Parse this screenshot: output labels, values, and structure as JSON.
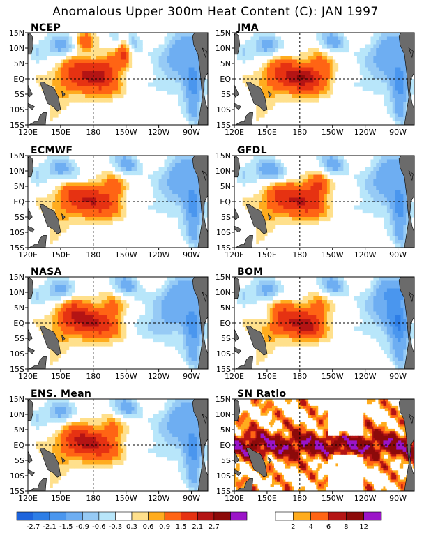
{
  "figure_title": "Anomalous Upper 300m Heat Content (C): JAN 1997",
  "chart_data": [
    {
      "type": "heatmap",
      "title": "NCEP",
      "field": "ncep"
    },
    {
      "type": "heatmap",
      "title": "JMA",
      "field": "jma"
    },
    {
      "type": "heatmap",
      "title": "ECMWF",
      "field": "ecmwf"
    },
    {
      "type": "heatmap",
      "title": "GFDL",
      "field": "gfdl"
    },
    {
      "type": "heatmap",
      "title": "NASA",
      "field": "nasa"
    },
    {
      "type": "heatmap",
      "title": "BOM",
      "field": "bom"
    },
    {
      "type": "heatmap",
      "title": "ENS. Mean",
      "field": "mean"
    },
    {
      "type": "heatmap",
      "title": "SN Ratio",
      "field": "sn"
    }
  ],
  "axes": {
    "x_ticks": [
      "120E",
      "150E",
      "180",
      "150W",
      "120W",
      "90W"
    ],
    "x_values": [
      120,
      150,
      180,
      210,
      240,
      270
    ],
    "x_range": [
      120,
      285
    ],
    "y_ticks": [
      "15N",
      "10N",
      "5N",
      "EQ",
      "5S",
      "10S",
      "15S"
    ],
    "y_values": [
      15,
      10,
      5,
      0,
      -5,
      -10,
      -15
    ],
    "y_range": [
      -15,
      15
    ],
    "reference_lines": "dashed at 180 and EQ"
  },
  "colorbar_anomaly": {
    "labels": [
      "-2.7",
      "-2.1",
      "-1.5",
      "-0.9",
      "-0.6",
      "-0.3",
      "0.3",
      "0.6",
      "0.9",
      "1.5",
      "2.1",
      "2.7"
    ],
    "thresholds": [
      -2.7,
      -2.1,
      -1.5,
      -0.9,
      -0.6,
      -0.3,
      0.3,
      0.6,
      0.9,
      1.5,
      2.1,
      2.7
    ],
    "colors": [
      "#1e64dc",
      "#2e7ee6",
      "#4a96ee",
      "#6eaef2",
      "#96caf5",
      "#b8e6fa",
      "#ffffff",
      "#ffe08c",
      "#ffac1e",
      "#ff6414",
      "#e63212",
      "#b41414",
      "#8c0a0a",
      "#9b14c8"
    ]
  },
  "colorbar_sn": {
    "labels": [
      "2",
      "4",
      "6",
      "8",
      "12"
    ],
    "thresholds": [
      2,
      4,
      6,
      8,
      12
    ],
    "colors": [
      "#ffffff",
      "#ffac1e",
      "#ff6414",
      "#b41414",
      "#8c0a0a",
      "#9b14c8"
    ]
  },
  "land_color": "#6b6b6b"
}
